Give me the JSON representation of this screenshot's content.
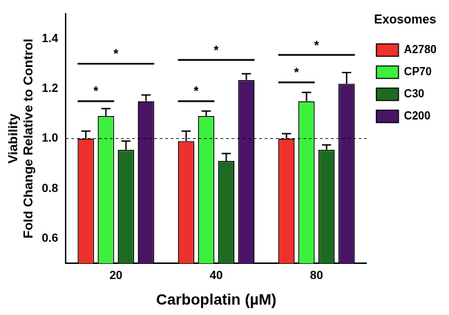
{
  "chart_data": {
    "type": "bar",
    "x_label": "Carboplatin (µM)",
    "y_label": [
      "Viability",
      "Fold Change Relative to Control"
    ],
    "categories": [
      "20",
      "40",
      "80"
    ],
    "series": [
      {
        "name": "A2780",
        "color": "#f0302a",
        "values": [
          1.0,
          0.99,
          1.0
        ],
        "errors": [
          0.03,
          0.04,
          0.02
        ]
      },
      {
        "name": "CP70",
        "color": "#3ef03e",
        "values": [
          1.09,
          1.09,
          1.15
        ],
        "errors": [
          0.03,
          0.02,
          0.035
        ]
      },
      {
        "name": "C30",
        "color": "#1d6b22",
        "values": [
          0.955,
          0.91,
          0.955
        ],
        "errors": [
          0.035,
          0.03,
          0.02
        ]
      },
      {
        "name": "C200",
        "color": "#4a1466",
        "values": [
          1.15,
          1.235,
          1.22
        ],
        "errors": [
          0.025,
          0.025,
          0.045
        ]
      }
    ],
    "ylim": [
      0.5,
      1.5
    ],
    "yticks": [
      0.6,
      0.8,
      {
        "value": 1,
        "label": "1.0"
      },
      1.2,
      1.4
    ],
    "grid": false,
    "legend": "right",
    "legend_title": "Exosomes",
    "reference_line": 1,
    "annotations": [
      {
        "text": "*",
        "category": "20",
        "from": "A2780",
        "to": "CP70",
        "y": 1.15
      },
      {
        "text": "*",
        "category": "20",
        "from": "A2780",
        "to": "C200",
        "y": 1.3
      },
      {
        "text": "*",
        "category": "40",
        "from": "A2780",
        "to": "CP70",
        "y": 1.15
      },
      {
        "text": "*",
        "category": "40",
        "from": "A2780",
        "to": "C200",
        "y": 1.315
      },
      {
        "text": "*",
        "category": "80",
        "from": "A2780",
        "to": "CP70",
        "y": 1.225
      },
      {
        "text": "*",
        "category": "80",
        "from": "A2780",
        "to": "C200",
        "y": 1.335
      }
    ]
  }
}
